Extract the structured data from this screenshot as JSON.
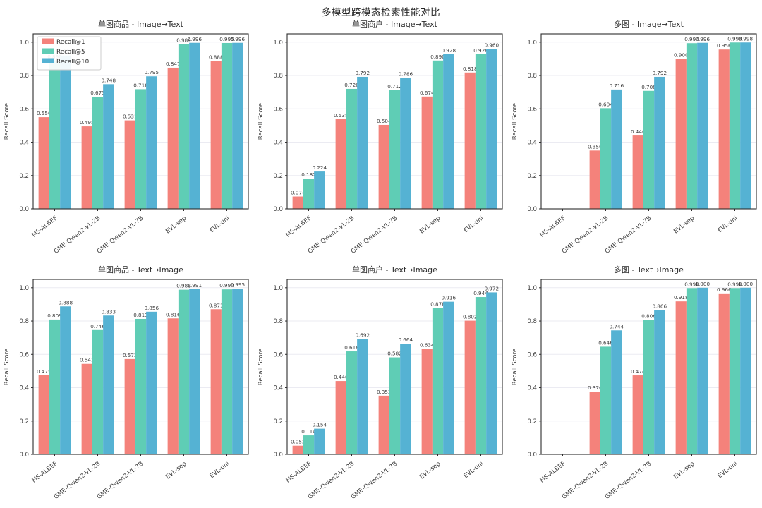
{
  "chart_data": {
    "type": "bar",
    "title": "多模型跨模态检索性能对比",
    "ylabel": "Recall Score",
    "categories": [
      "MS-ALBEF",
      "GME-Qwen2-VL-2B",
      "GME-Qwen2-VL-7B",
      "EVL-sep",
      "EVL-uni"
    ],
    "legend": [
      "Recall@1",
      "Recall@5",
      "Recall@10"
    ],
    "legend_position": "upper-left-of-first-panel",
    "colors": [
      "#F4827B",
      "#5FCDB5",
      "#55B2D3"
    ],
    "grid": true,
    "ylim": [
      0,
      1.05
    ],
    "yticks": [
      "0.0",
      "0.2",
      "0.4",
      "0.6",
      "0.8",
      "1.0"
    ],
    "value_label_decimals": 3,
    "panels": [
      {
        "title": "单图商品 - Image→Text",
        "series": [
          {
            "name": "Recall@1",
            "values": [
              0.55,
              0.495,
              0.531,
              0.847,
              0.888
            ]
          },
          {
            "name": "Recall@5",
            "values": [
              0.89,
              0.673,
              0.718,
              0.989,
              0.995
            ]
          },
          {
            "name": "Recall@10",
            "values": [
              0.92,
              0.748,
              0.795,
              0.996,
              0.996
            ]
          }
        ]
      },
      {
        "title": "单图商户 - Image→Text",
        "series": [
          {
            "name": "Recall@1",
            "values": [
              0.074,
              0.538,
              0.504,
              0.674,
              0.818
            ]
          },
          {
            "name": "Recall@5",
            "values": [
              0.182,
              0.72,
              0.712,
              0.89,
              0.928
            ]
          },
          {
            "name": "Recall@10",
            "values": [
              0.224,
              0.792,
              0.786,
              0.928,
              0.96
            ]
          }
        ]
      },
      {
        "title": "多图 - Image→Text",
        "series": [
          {
            "name": "Recall@1",
            "values": [
              null,
              0.35,
              0.44,
              0.9,
              0.956
            ]
          },
          {
            "name": "Recall@5",
            "values": [
              null,
              0.604,
              0.708,
              0.994,
              0.998
            ]
          },
          {
            "name": "Recall@10",
            "values": [
              null,
              0.716,
              0.792,
              0.996,
              0.998
            ]
          }
        ]
      },
      {
        "title": "单图商品 - Text→Image",
        "series": [
          {
            "name": "Recall@1",
            "values": [
              0.475,
              0.543,
              0.572,
              0.816,
              0.871
            ]
          },
          {
            "name": "Recall@5",
            "values": [
              0.809,
              0.746,
              0.813,
              0.988,
              0.99
            ]
          },
          {
            "name": "Recall@10",
            "values": [
              0.888,
              0.833,
              0.856,
              0.991,
              0.995
            ]
          }
        ]
      },
      {
        "title": "单图商户 - Text→Image",
        "series": [
          {
            "name": "Recall@1",
            "values": [
              0.052,
              0.44,
              0.352,
              0.634,
              0.802
            ]
          },
          {
            "name": "Recall@5",
            "values": [
              0.114,
              0.618,
              0.582,
              0.878,
              0.944
            ]
          },
          {
            "name": "Recall@10",
            "values": [
              0.154,
              0.692,
              0.664,
              0.916,
              0.972
            ]
          }
        ]
      },
      {
        "title": "多图 - Text→Image",
        "series": [
          {
            "name": "Recall@1",
            "values": [
              null,
              0.376,
              0.474,
              0.918,
              0.966
            ]
          },
          {
            "name": "Recall@5",
            "values": [
              null,
              0.646,
              0.806,
              0.998,
              0.998
            ]
          },
          {
            "name": "Recall@10",
            "values": [
              null,
              0.744,
              0.866,
              1.0,
              1.0
            ]
          }
        ]
      }
    ],
    "style_colors": {
      "spine": "#2e2e2e",
      "gridline": "#ebebf2",
      "tick_label": "#3d3d3d",
      "value_label": "#3a3a3a",
      "title": "#2b2b2b",
      "legend_border": "#cccccc",
      "legend_bg": "#ffffff"
    }
  }
}
